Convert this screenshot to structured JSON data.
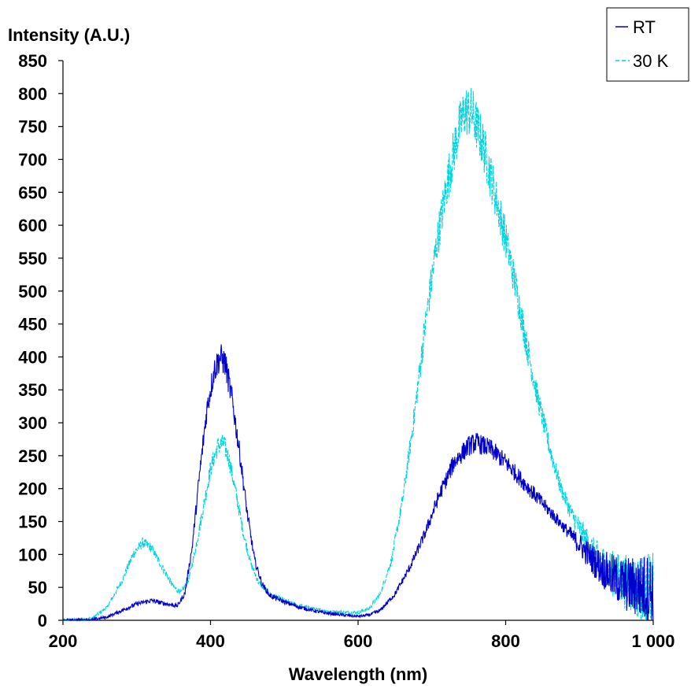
{
  "chart_data": {
    "type": "line",
    "title": "",
    "xlabel": "Wavelength (nm)",
    "ylabel": "Intensity (A.U.)",
    "xlim": [
      200,
      1000
    ],
    "ylim": [
      0,
      850
    ],
    "x_ticks": [
      200,
      400,
      600,
      800,
      1000
    ],
    "x_tick_labels": [
      "200",
      "400",
      "600",
      "800",
      "1 000"
    ],
    "y_ticks": [
      0,
      50,
      100,
      150,
      200,
      250,
      300,
      350,
      400,
      450,
      500,
      550,
      600,
      650,
      700,
      750,
      800,
      850
    ],
    "y_tick_labels": [
      "0",
      "50",
      "100",
      "150",
      "200",
      "250",
      "300",
      "350",
      "400",
      "450",
      "500",
      "550",
      "600",
      "650",
      "700",
      "750",
      "800",
      "850"
    ],
    "grid": false,
    "legend_position": "top-right",
    "series": [
      {
        "name": "RT",
        "color": "#0000cc",
        "dash": "solid",
        "points": [
          [
            200,
            0
          ],
          [
            240,
            1
          ],
          [
            260,
            5
          ],
          [
            280,
            15
          ],
          [
            300,
            25
          ],
          [
            320,
            30
          ],
          [
            340,
            25
          ],
          [
            355,
            22
          ],
          [
            365,
            40
          ],
          [
            375,
            110
          ],
          [
            385,
            220
          ],
          [
            395,
            320
          ],
          [
            405,
            380
          ],
          [
            413,
            400
          ],
          [
            420,
            390
          ],
          [
            430,
            330
          ],
          [
            440,
            250
          ],
          [
            450,
            160
          ],
          [
            460,
            90
          ],
          [
            470,
            55
          ],
          [
            480,
            38
          ],
          [
            500,
            28
          ],
          [
            520,
            20
          ],
          [
            550,
            12
          ],
          [
            580,
            8
          ],
          [
            600,
            6
          ],
          [
            615,
            8
          ],
          [
            630,
            15
          ],
          [
            650,
            40
          ],
          [
            670,
            80
          ],
          [
            690,
            130
          ],
          [
            710,
            190
          ],
          [
            730,
            240
          ],
          [
            750,
            265
          ],
          [
            760,
            270
          ],
          [
            780,
            260
          ],
          [
            800,
            240
          ],
          [
            820,
            215
          ],
          [
            840,
            190
          ],
          [
            860,
            165
          ],
          [
            880,
            140
          ],
          [
            900,
            115
          ],
          [
            920,
            90
          ],
          [
            940,
            70
          ],
          [
            960,
            55
          ],
          [
            980,
            50
          ],
          [
            1000,
            45
          ]
        ]
      },
      {
        "name": "30 K",
        "color": "#00d4e0",
        "dash": "dashed",
        "points": [
          [
            200,
            0
          ],
          [
            240,
            3
          ],
          [
            260,
            20
          ],
          [
            280,
            60
          ],
          [
            295,
            100
          ],
          [
            308,
            118
          ],
          [
            320,
            110
          ],
          [
            335,
            80
          ],
          [
            350,
            50
          ],
          [
            360,
            42
          ],
          [
            370,
            60
          ],
          [
            380,
            110
          ],
          [
            390,
            170
          ],
          [
            400,
            230
          ],
          [
            410,
            265
          ],
          [
            418,
            268
          ],
          [
            425,
            245
          ],
          [
            435,
            190
          ],
          [
            445,
            130
          ],
          [
            455,
            85
          ],
          [
            465,
            58
          ],
          [
            480,
            40
          ],
          [
            500,
            30
          ],
          [
            520,
            22
          ],
          [
            550,
            15
          ],
          [
            580,
            12
          ],
          [
            600,
            12
          ],
          [
            615,
            18
          ],
          [
            630,
            40
          ],
          [
            645,
            90
          ],
          [
            660,
            180
          ],
          [
            675,
            300
          ],
          [
            690,
            440
          ],
          [
            705,
            560
          ],
          [
            720,
            660
          ],
          [
            735,
            740
          ],
          [
            745,
            775
          ],
          [
            755,
            770
          ],
          [
            770,
            720
          ],
          [
            785,
            650
          ],
          [
            800,
            580
          ],
          [
            815,
            500
          ],
          [
            830,
            410
          ],
          [
            845,
            330
          ],
          [
            860,
            260
          ],
          [
            875,
            200
          ],
          [
            890,
            160
          ],
          [
            905,
            130
          ],
          [
            920,
            100
          ],
          [
            940,
            75
          ],
          [
            960,
            60
          ],
          [
            980,
            50
          ],
          [
            1000,
            45
          ]
        ]
      }
    ]
  }
}
